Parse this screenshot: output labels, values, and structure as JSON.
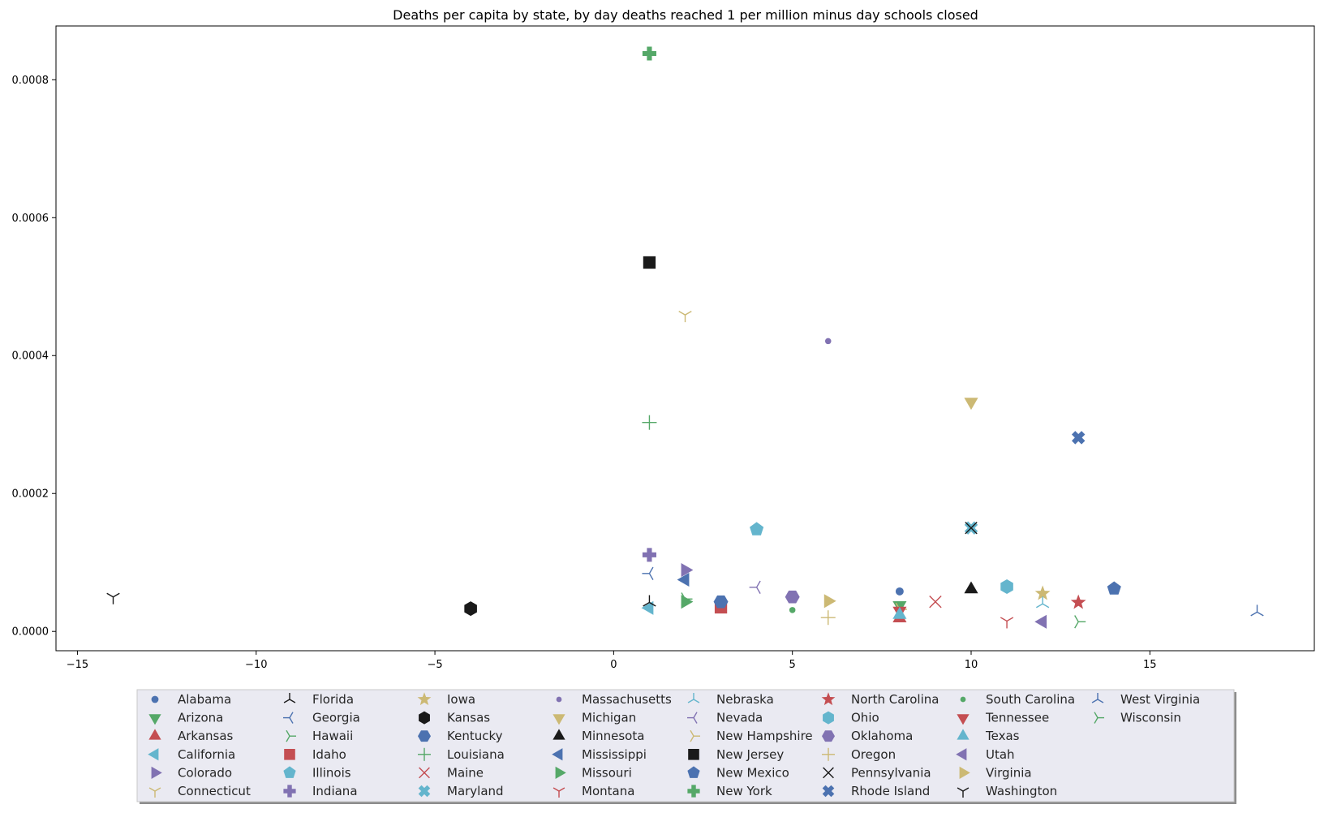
{
  "chart_data": {
    "type": "scatter",
    "title": "Deaths per capita by state, by day deaths reached 1 per million minus day schools closed",
    "xlabel": "",
    "ylabel": "",
    "xlim": [
      -15.6,
      19.6
    ],
    "ylim": [
      -2.8e-05,
      0.000878
    ],
    "x_ticks": [
      -15,
      -10,
      -5,
      0,
      5,
      10,
      15
    ],
    "x_tick_labels": [
      "−15",
      "−10",
      "−5",
      "0",
      "5",
      "10",
      "15"
    ],
    "y_ticks": [
      0,
      0.0002,
      0.0004,
      0.0006,
      0.0008
    ],
    "y_tick_labels": [
      "0.0000",
      "0.0002",
      "0.0004",
      "0.0006",
      "0.0008"
    ],
    "grid": false,
    "legend_position": "bottom-center",
    "legend_columns": 8,
    "series": [
      {
        "name": "Alabama",
        "marker": "circle",
        "color": "#4c72b0",
        "x": 8,
        "y": 5.8e-05
      },
      {
        "name": "Arizona",
        "marker": "triangle-down",
        "color": "#55a868",
        "x": 8,
        "y": 3.8e-05
      },
      {
        "name": "Arkansas",
        "marker": "triangle-up",
        "color": "#c44e52",
        "x": 8,
        "y": 1.9e-05
      },
      {
        "name": "California",
        "marker": "triangle-left",
        "color": "#64b5cd",
        "x": 1,
        "y": 3.4e-05
      },
      {
        "name": "Colorado",
        "marker": "triangle-right",
        "color": "#8172b2",
        "x": 2,
        "y": 8.9e-05
      },
      {
        "name": "Connecticut",
        "marker": "tri-down",
        "color": "#ccb974",
        "x": 2,
        "y": 0.000459
      },
      {
        "name": "Florida",
        "marker": "tri-up",
        "color": "#1a1a1a",
        "x": 1,
        "y": 4.2e-05
      },
      {
        "name": "Georgia",
        "marker": "tri-left",
        "color": "#4c72b0",
        "x": 1,
        "y": 8.4e-05
      },
      {
        "name": "Hawaii",
        "marker": "tri-right",
        "color": "#55a868",
        "x": 2,
        "y": 4.7e-05
      },
      {
        "name": "Idaho",
        "marker": "square",
        "color": "#c44e52",
        "x": 3,
        "y": 3.5e-05
      },
      {
        "name": "Illinois",
        "marker": "pentagon",
        "color": "#64b5cd",
        "x": 4,
        "y": 0.000148
      },
      {
        "name": "Indiana",
        "marker": "plus-filled",
        "color": "#8172b2",
        "x": 1,
        "y": 0.000111
      },
      {
        "name": "Iowa",
        "marker": "star",
        "color": "#ccb974",
        "x": 12,
        "y": 5.5e-05
      },
      {
        "name": "Kansas",
        "marker": "hexagon",
        "color": "#1a1a1a",
        "x": -4,
        "y": 3.3e-05
      },
      {
        "name": "Kentucky",
        "marker": "hexagon2",
        "color": "#4c72b0",
        "x": 3,
        "y": 4.3e-05
      },
      {
        "name": "Louisiana",
        "marker": "plus",
        "color": "#55a868",
        "x": 1,
        "y": 0.000303
      },
      {
        "name": "Maine",
        "marker": "x",
        "color": "#c44e52",
        "x": 9,
        "y": 4.3e-05
      },
      {
        "name": "Maryland",
        "marker": "x-filled",
        "color": "#64b5cd",
        "x": 10,
        "y": 0.00015
      },
      {
        "name": "Massachusetts",
        "marker": "point",
        "color": "#8172b2",
        "x": 6,
        "y": 0.000421
      },
      {
        "name": "Michigan",
        "marker": "triangle-down",
        "color": "#ccb974",
        "x": 10,
        "y": 0.000333
      },
      {
        "name": "Minnesota",
        "marker": "triangle-up",
        "color": "#1a1a1a",
        "x": 10,
        "y": 6.1e-05
      },
      {
        "name": "Mississippi",
        "marker": "triangle-left",
        "color": "#4c72b0",
        "x": 2,
        "y": 7.5e-05
      },
      {
        "name": "Missouri",
        "marker": "triangle-right",
        "color": "#55a868",
        "x": 2,
        "y": 4.3e-05
      },
      {
        "name": "Montana",
        "marker": "tri-down",
        "color": "#c44e52",
        "x": 11,
        "y": 1.5e-05
      },
      {
        "name": "Nebraska",
        "marker": "tri-up",
        "color": "#64b5cd",
        "x": 12,
        "y": 4e-05
      },
      {
        "name": "Nevada",
        "marker": "tri-left",
        "color": "#8172b2",
        "x": 4,
        "y": 6.4e-05
      },
      {
        "name": "New Hampshire",
        "marker": "tri-right",
        "color": "#ccb974",
        "x": 8,
        "y": 3.2e-05
      },
      {
        "name": "New Jersey",
        "marker": "square",
        "color": "#1a1a1a",
        "x": 1,
        "y": 0.000535
      },
      {
        "name": "New Mexico",
        "marker": "pentagon",
        "color": "#4c72b0",
        "x": 14,
        "y": 6.2e-05
      },
      {
        "name": "New York",
        "marker": "plus-filled",
        "color": "#55a868",
        "x": 1,
        "y": 0.000838
      },
      {
        "name": "North Carolina",
        "marker": "star",
        "color": "#c44e52",
        "x": 13,
        "y": 4.2e-05
      },
      {
        "name": "Ohio",
        "marker": "hexagon",
        "color": "#64b5cd",
        "x": 11,
        "y": 6.5e-05
      },
      {
        "name": "Oklahoma",
        "marker": "hexagon2",
        "color": "#8172b2",
        "x": 5,
        "y": 5e-05
      },
      {
        "name": "Oregon",
        "marker": "plus",
        "color": "#ccb974",
        "x": 6,
        "y": 2e-05
      },
      {
        "name": "Pennsylvania",
        "marker": "x",
        "color": "#1a1a1a",
        "x": 10,
        "y": 0.00015
      },
      {
        "name": "Rhode Island",
        "marker": "x-filled",
        "color": "#4c72b0",
        "x": 13,
        "y": 0.000281
      },
      {
        "name": "South Carolina",
        "marker": "point",
        "color": "#55a868",
        "x": 5,
        "y": 3.1e-05
      },
      {
        "name": "Tennessee",
        "marker": "triangle-down",
        "color": "#c44e52",
        "x": 8,
        "y": 3e-05
      },
      {
        "name": "Texas",
        "marker": "triangle-up",
        "color": "#64b5cd",
        "x": 8,
        "y": 2.4e-05
      },
      {
        "name": "Utah",
        "marker": "triangle-left",
        "color": "#8172b2",
        "x": 12,
        "y": 1.4e-05
      },
      {
        "name": "Virginia",
        "marker": "triangle-right",
        "color": "#ccb974",
        "x": 6,
        "y": 4.4e-05
      },
      {
        "name": "Washington",
        "marker": "tri-down",
        "color": "#1a1a1a",
        "x": -14,
        "y": 5e-05
      },
      {
        "name": "West Virginia",
        "marker": "tri-up",
        "color": "#4c72b0",
        "x": 18,
        "y": 2.8e-05
      },
      {
        "name": "Wisconsin",
        "marker": "tri-right",
        "color": "#55a868",
        "x": 13,
        "y": 1.4e-05
      }
    ]
  }
}
